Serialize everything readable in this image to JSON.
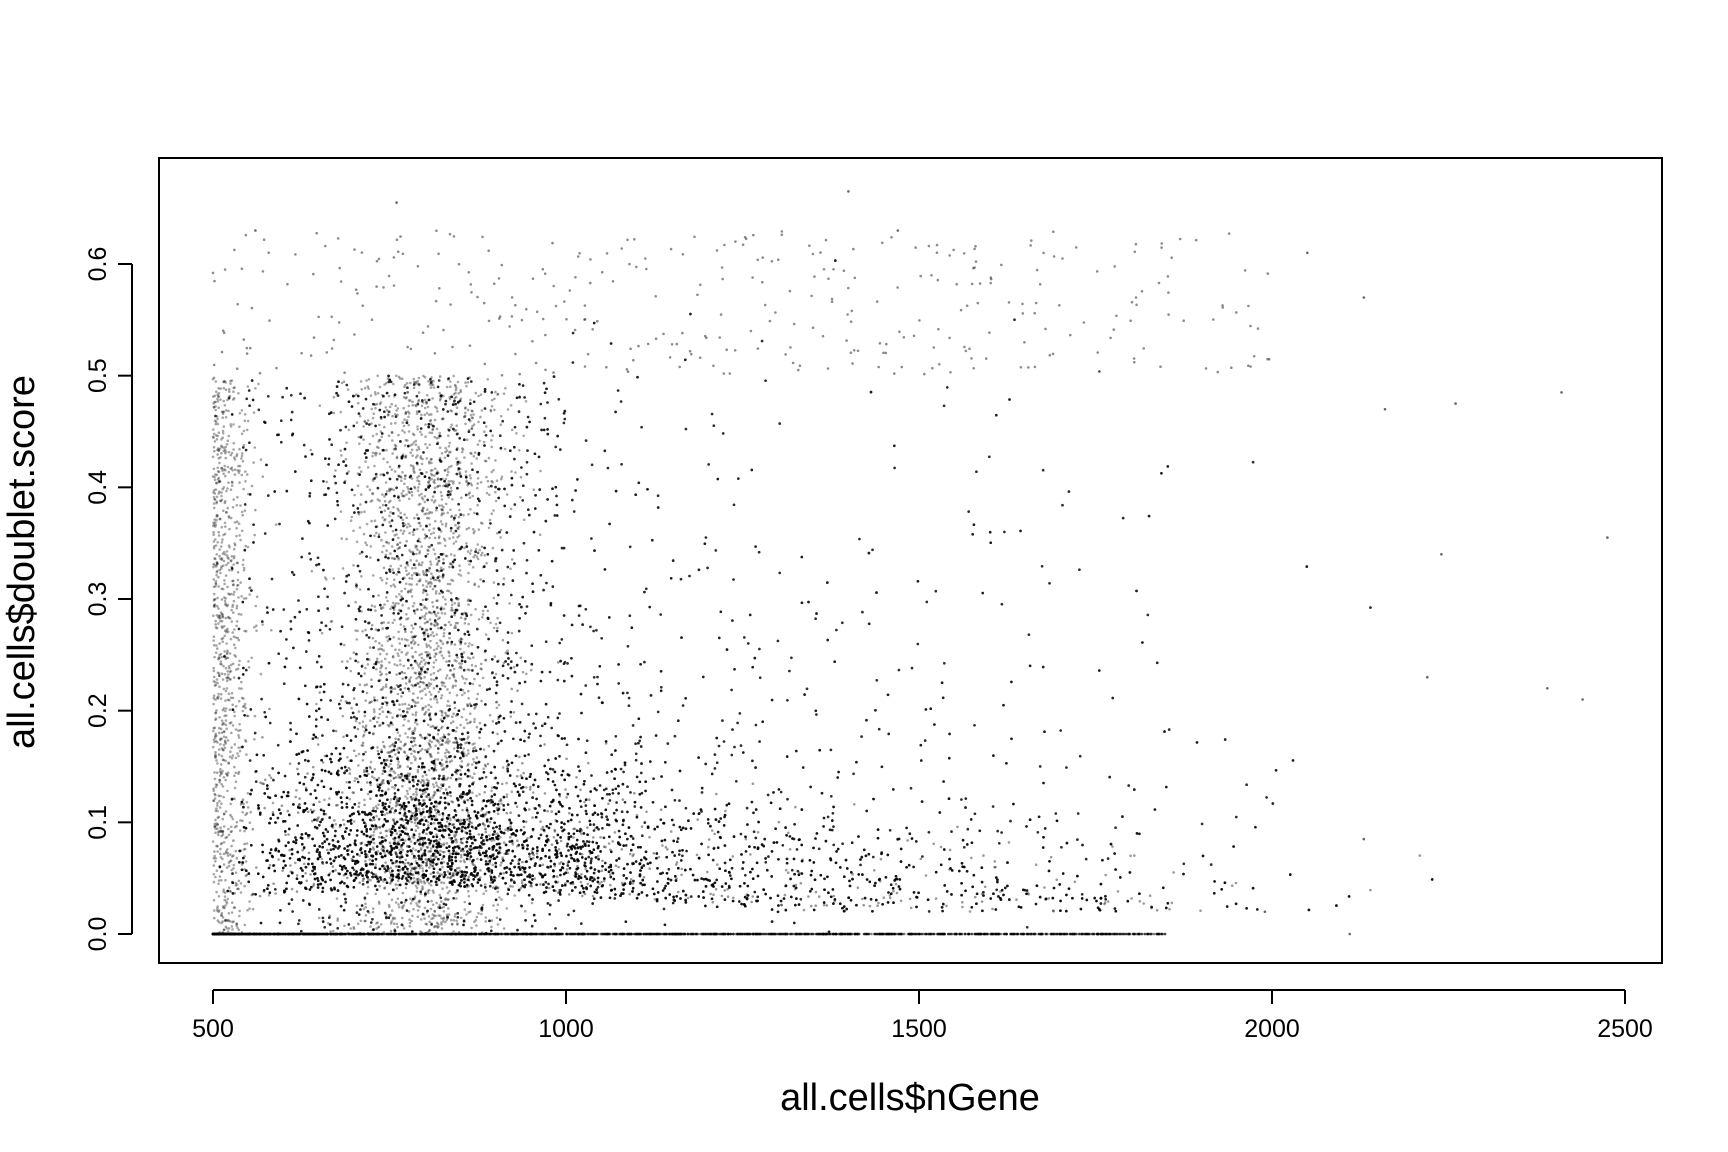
{
  "chart_data": {
    "type": "scatter",
    "title": "",
    "xlabel": "all.cells$nGene",
    "ylabel": "all.cells$doublet.score",
    "xlim": [
      500,
      2500
    ],
    "ylim": [
      0.0,
      0.6
    ],
    "x_ticks": [
      500,
      1000,
      1500,
      2000,
      2500
    ],
    "y_ticks": [
      0.0,
      0.1,
      0.2,
      0.3,
      0.4,
      0.5,
      0.6
    ],
    "x_tick_labels": [
      "500",
      "1000",
      "1500",
      "2000",
      "2500"
    ],
    "y_tick_labels": [
      "0.0",
      "0.1",
      "0.2",
      "0.3",
      "0.4",
      "0.5",
      "0.6"
    ],
    "grid": false,
    "legend": "none",
    "point_color": "#000000",
    "density_description_points": [
      {
        "x": 560,
        "y": 0.63
      },
      {
        "x": 760,
        "y": 0.655
      },
      {
        "x": 1400,
        "y": 0.665
      },
      {
        "x": 1470,
        "y": 0.63
      },
      {
        "x": 2050,
        "y": 0.61
      },
      {
        "x": 2130,
        "y": 0.57
      },
      {
        "x": 2410,
        "y": 0.485
      },
      {
        "x": 2475,
        "y": 0.355
      },
      {
        "x": 2440,
        "y": 0.21
      },
      {
        "x": 2390,
        "y": 0.22
      },
      {
        "x": 2220,
        "y": 0.23
      },
      {
        "x": 2260,
        "y": 0.475
      },
      {
        "x": 2160,
        "y": 0.47
      },
      {
        "x": 2240,
        "y": 0.34
      },
      {
        "x": 2130,
        "y": 0.085
      },
      {
        "x": 2110,
        "y": 0.0
      },
      {
        "x": 1990,
        "y": 0.02
      }
    ]
  }
}
